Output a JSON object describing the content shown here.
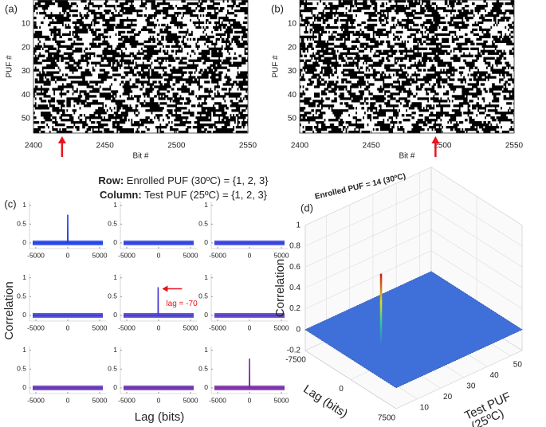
{
  "chart_data": [
    {
      "type": "heatmap",
      "panel_label": "(a)",
      "xlabel": "Bit #",
      "ylabel": "PUF #",
      "color": "#000000",
      "xlim": [
        2400,
        2550
      ],
      "xticks": [
        2400,
        2450,
        2500,
        2550
      ],
      "ylim": [
        0,
        56
      ],
      "yticks": [
        10,
        20,
        30,
        40,
        50
      ],
      "arrow_x": 2420,
      "arrow_color": "#e8141c"
    },
    {
      "type": "heatmap",
      "panel_label": "(b)",
      "xlabel": "Bit #",
      "ylabel": "PUF #",
      "color": "#000000",
      "xlim": [
        2400,
        2550
      ],
      "xticks": [
        2400,
        2450,
        2500,
        2550
      ],
      "ylim": [
        0,
        56
      ],
      "yticks": [
        10,
        20,
        30,
        40,
        50
      ],
      "arrow_x": 2495,
      "arrow_color": "#e8141c"
    },
    {
      "type": "line-grid",
      "panel_label": "(c)",
      "header_row_label": "Row:",
      "header_row_text": " Enrolled PUF (30ºC) = {1, 2, 3}",
      "header_col_label": "Column:",
      "header_col_text": " Test PUF (25ºC) = {1, 2, 3}",
      "xlabel": "Lag (bits)",
      "ylabel": "Correlation",
      "xlim": [
        -6000,
        6000
      ],
      "xticks": [
        -5000,
        0,
        5000
      ],
      "ylim": [
        -0.15,
        1.1
      ],
      "yticks": [
        0,
        0.5,
        1
      ],
      "annotation_color": "#e8141c",
      "subplots": [
        {
          "color": "#1f3fe6",
          "x": [
            -5500,
            -20,
            0,
            20,
            5500
          ],
          "values": [
            0,
            0,
            0.75,
            0,
            0
          ]
        },
        {
          "color": "#2a3ee0",
          "x": [
            -5500,
            5500
          ],
          "values": [
            0,
            0
          ]
        },
        {
          "color": "#333cdc",
          "x": [
            -5500,
            5500
          ],
          "values": [
            0,
            0
          ]
        },
        {
          "color": "#3b38d6",
          "x": [
            -5500,
            5500
          ],
          "values": [
            0,
            0
          ]
        },
        {
          "color": "#4636cf",
          "x": [
            -5500,
            -90,
            -70,
            -50,
            5500
          ],
          "values": [
            0,
            0,
            0.75,
            0,
            0
          ],
          "annotation": "lag = -70"
        },
        {
          "color": "#5533c4",
          "x": [
            -5500,
            5500
          ],
          "values": [
            0,
            0
          ]
        },
        {
          "color": "#6230b8",
          "x": [
            -5500,
            5500
          ],
          "values": [
            0,
            0
          ]
        },
        {
          "color": "#6c2db0",
          "x": [
            -5500,
            5500
          ],
          "values": [
            0,
            0
          ]
        },
        {
          "color": "#7a2aa8",
          "x": [
            -5500,
            -20,
            0,
            20,
            5500
          ],
          "values": [
            0,
            0,
            0.78,
            0,
            0
          ]
        }
      ]
    },
    {
      "type": "surface3d",
      "panel_label": "(d)",
      "title": "Enrolled PUF  = 14 (30ºC)",
      "zlabel": "Correlation",
      "xlabel": "Lag (bits)",
      "ylabel": [
        "Test PUF",
        "(25ºC)"
      ],
      "xlim": [
        -7500,
        7500
      ],
      "xticks": [
        -7500,
        0,
        7500
      ],
      "ylim": [
        1,
        55
      ],
      "yticks": [
        10,
        20,
        30,
        40,
        50
      ],
      "zlim": [
        -0.2,
        1
      ],
      "zticks": [
        -0.2,
        0,
        0.2,
        0.4,
        0.6,
        0.8,
        1
      ],
      "surface_z": 0,
      "surface_color": "#3f6fd8",
      "peak": {
        "x": 0,
        "y": 14,
        "z": 0.68
      }
    }
  ]
}
